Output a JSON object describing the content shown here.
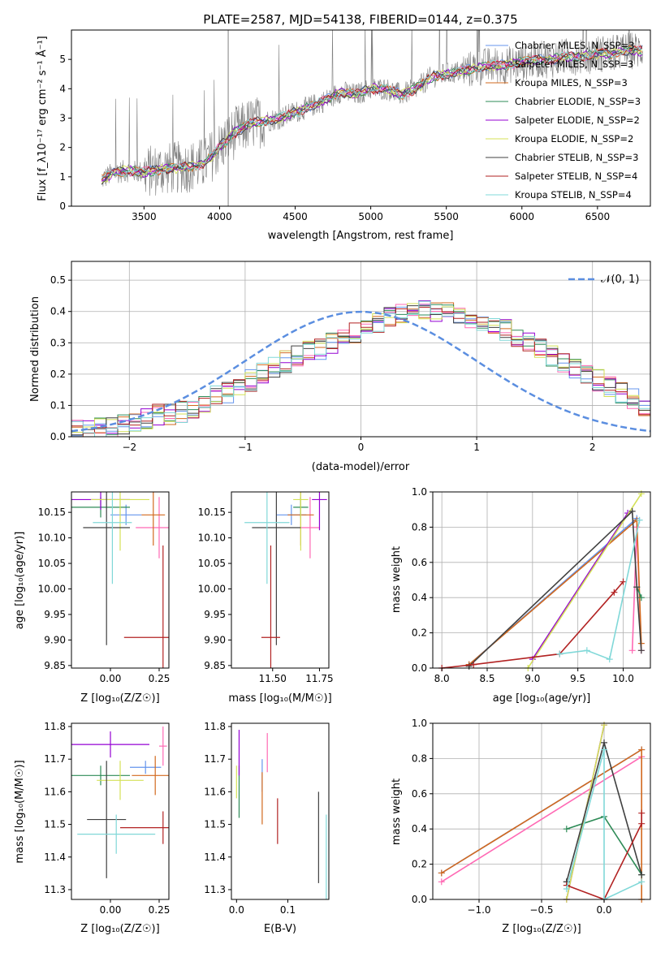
{
  "colors": {
    "chabrier_miles": "#6495ed",
    "salpeter_miles": "#ff69b4",
    "kroupa_miles": "#d2691e",
    "chabrier_elodie": "#2e8b57",
    "salpeter_elodie": "#9400d3",
    "kroupa_elodie": "#d4e157",
    "chabrier_stelib": "#404040",
    "salpeter_stelib": "#b22222",
    "kroupa_stelib": "#80d8d8",
    "normal": "#5b8ee0"
  },
  "spectrum": {
    "title": "PLATE=2587, MJD=54138, FIBERID=0144, z=0.375",
    "xlabel": "wavelength [Angstrom, rest frame]",
    "ylabel": "Flux [f_λ10⁻¹⁷ erg cm⁻² s⁻¹ Å⁻¹]",
    "xticks": [
      "3500",
      "4000",
      "4500",
      "5000",
      "5500",
      "6000",
      "6500"
    ],
    "yticks": [
      "0",
      "1",
      "2",
      "3",
      "4",
      "5"
    ],
    "legend": [
      "Chabrier MILES, N_SSP=3",
      "Salpeter MILES, N_SSP=3",
      "Kroupa MILES, N_SSP=3",
      "Chabrier ELODIE, N_SSP=3",
      "Salpeter ELODIE, N_SSP=2",
      "Kroupa ELODIE, N_SSP=2",
      "Chabrier STELIB, N_SSP=3",
      "Salpeter STELIB, N_SSP=4",
      "Kroupa STELIB, N_SSP=4"
    ]
  },
  "residuals": {
    "xlabel": "(data-model)/error",
    "ylabel": "Normed distribution",
    "xticks": [
      "−2",
      "−1",
      "0",
      "1",
      "2"
    ],
    "yticks": [
      "0.0",
      "0.1",
      "0.2",
      "0.3",
      "0.4",
      "0.5"
    ],
    "legend": "𝒩(0, 1)"
  },
  "panel_age_z": {
    "ylabel": "age  [log₁₀(age/yr)]",
    "xlabel": "Z [log₁₀(Z/Z☉)]",
    "xticks": [
      "0.00",
      "0.25"
    ],
    "yticks": [
      "9.85",
      "9.90",
      "9.95",
      "10.00",
      "10.05",
      "10.10",
      "10.15"
    ]
  },
  "panel_age_mass": {
    "xlabel": "mass [log₁₀(M/M☉)]",
    "xticks": [
      "11.50",
      "11.75"
    ],
    "yticks": [
      "9.85",
      "9.90",
      "9.95",
      "10.00",
      "10.05",
      "10.10",
      "10.15"
    ]
  },
  "panel_weight_age": {
    "ylabel": "mass weight",
    "xlabel": "age  [log₁₀(age/yr)]",
    "xticks": [
      "8.0",
      "8.5",
      "9.0",
      "9.5",
      "10.0"
    ],
    "yticks": [
      "0.0",
      "0.2",
      "0.4",
      "0.6",
      "0.8",
      "1.0"
    ]
  },
  "panel_mass_z": {
    "ylabel": "mass [log₁₀(M/M☉)]",
    "xlabel": "Z [log₁₀(Z/Z☉)]",
    "xticks": [
      "0.00",
      "0.25"
    ],
    "yticks": [
      "11.3",
      "11.4",
      "11.5",
      "11.6",
      "11.7",
      "11.8"
    ]
  },
  "panel_mass_ebv": {
    "xlabel": "E(B-V)",
    "xticks": [
      "0.0",
      "0.1"
    ],
    "yticks": [
      "11.3",
      "11.4",
      "11.5",
      "11.6",
      "11.7",
      "11.8"
    ]
  },
  "panel_weight_z": {
    "ylabel": "mass weight",
    "xlabel": "Z [log₁₀(Z/Z☉)]",
    "xticks": [
      "−1.0",
      "−0.5",
      "0.0"
    ],
    "yticks": [
      "0.0",
      "0.2",
      "0.4",
      "0.6",
      "0.8",
      "1.0"
    ]
  },
  "chart_data": [
    {
      "type": "line",
      "title": "PLATE=2587, MJD=54138, FIBERID=0144, z=0.375",
      "xlabel": "wavelength [Angstrom, rest frame]",
      "ylabel": "Flux [f_λ10⁻¹⁷ erg cm⁻² s⁻¹ Å⁻¹]",
      "xlim": [
        3020,
        6850
      ],
      "ylim": [
        0,
        6
      ],
      "legend_position": "top-right",
      "continuum": {
        "x": [
          3220,
          3300,
          3400,
          3500,
          3600,
          3700,
          3800,
          3900,
          4000,
          4100,
          4200,
          4300,
          4400,
          4500,
          4600,
          4700,
          4800,
          4900,
          5000,
          5100,
          5200,
          5300,
          5400,
          5500,
          5600,
          5700,
          5800,
          5900,
          6000,
          6100,
          6200,
          6300,
          6400,
          6500,
          6600,
          6700,
          6800
        ],
        "y": [
          0.9,
          1.15,
          1.2,
          1.15,
          1.25,
          1.3,
          1.35,
          1.45,
          2.0,
          2.5,
          2.8,
          2.9,
          3.0,
          3.2,
          3.4,
          3.6,
          3.9,
          3.8,
          4.0,
          4.0,
          3.8,
          4.0,
          4.4,
          4.5,
          4.6,
          4.7,
          4.8,
          4.8,
          4.9,
          5.0,
          5.0,
          5.1,
          5.1,
          5.2,
          5.2,
          5.3,
          5.3
        ]
      },
      "series": [
        {
          "name": "Chabrier MILES, N_SSP=3"
        },
        {
          "name": "Salpeter MILES, N_SSP=3"
        },
        {
          "name": "Kroupa MILES, N_SSP=3"
        },
        {
          "name": "Chabrier ELODIE, N_SSP=3"
        },
        {
          "name": "Salpeter ELODIE, N_SSP=2"
        },
        {
          "name": "Kroupa ELODIE, N_SSP=2"
        },
        {
          "name": "Chabrier STELIB, N_SSP=3"
        },
        {
          "name": "Salpeter STELIB, N_SSP=4"
        },
        {
          "name": "Kroupa STELIB, N_SSP=4"
        }
      ]
    },
    {
      "type": "area",
      "xlabel": "(data-model)/error",
      "ylabel": "Normed distribution",
      "xlim": [
        -2.5,
        2.5
      ],
      "ylim": [
        0,
        0.56
      ],
      "bin_width": 0.1,
      "bins_start": -2.5,
      "histogram": [
        0.02,
        0.02,
        0.03,
        0.03,
        0.04,
        0.05,
        0.06,
        0.07,
        0.07,
        0.08,
        0.09,
        0.11,
        0.13,
        0.14,
        0.16,
        0.18,
        0.2,
        0.22,
        0.24,
        0.26,
        0.27,
        0.28,
        0.3,
        0.31,
        0.33,
        0.35,
        0.36,
        0.38,
        0.39,
        0.4,
        0.4,
        0.4,
        0.4,
        0.39,
        0.38,
        0.37,
        0.36,
        0.34,
        0.32,
        0.3,
        0.28,
        0.26,
        0.24,
        0.22,
        0.2,
        0.18,
        0.16,
        0.14,
        0.12,
        0.1
      ],
      "curve": "N(0,1)",
      "legend_position": "top-right",
      "grid": true
    },
    {
      "type": "scatter",
      "xlabel": "Z [log₁₀(Z/Z☉)]",
      "ylabel": "age  [log₁₀(age/yr)]",
      "xlim": [
        -0.2,
        0.3
      ],
      "ylim": [
        9.845,
        10.19
      ],
      "points": [
        {
          "x": 0.08,
          "y": 10.145,
          "xerr": 0.08,
          "yerr": 0.02
        },
        {
          "x": 0.25,
          "y": 10.12,
          "xerr": 0.12,
          "yerr": 0.06
        },
        {
          "x": 0.22,
          "y": 10.145,
          "xerr": 0.06,
          "yerr": 0.06
        },
        {
          "x": -0.05,
          "y": 10.16,
          "xerr": 0.15,
          "yerr": 0.02
        },
        {
          "x": -0.05,
          "y": 10.175,
          "xerr": 0.15,
          "yerr": 0.02
        },
        {
          "x": 0.05,
          "y": 10.175,
          "xerr": 0.15,
          "yerr": 0.1
        },
        {
          "x": -0.02,
          "y": 10.12,
          "xerr": 0.12,
          "yerr": 0.23
        },
        {
          "x": 0.27,
          "y": 9.905,
          "xerr": 0.2,
          "yerr": 0.18
        },
        {
          "x": 0.01,
          "y": 10.13,
          "xerr": 0.1,
          "yerr": 0.12
        }
      ]
    },
    {
      "type": "scatter",
      "xlabel": "mass [log₁₀(M/M☉)]",
      "xlim": [
        11.28,
        11.8
      ],
      "ylim": [
        9.845,
        10.19
      ],
      "points": [
        {
          "x": 11.6,
          "y": 10.145,
          "xerr": 0.08,
          "yerr": 0.02
        },
        {
          "x": 11.7,
          "y": 10.12,
          "xerr": 0.05,
          "yerr": 0.06
        },
        {
          "x": 11.65,
          "y": 10.145,
          "xerr": 0.07,
          "yerr": 0.06
        },
        {
          "x": 11.65,
          "y": 10.16,
          "xerr": 0.04,
          "yerr": 0.02
        },
        {
          "x": 11.75,
          "y": 10.175,
          "xerr": 0.04,
          "yerr": 0.06
        },
        {
          "x": 11.65,
          "y": 10.175,
          "xerr": 0.04,
          "yerr": 0.1
        },
        {
          "x": 11.52,
          "y": 10.12,
          "xerr": 0.13,
          "yerr": 0.23
        },
        {
          "x": 11.49,
          "y": 9.905,
          "xerr": 0.05,
          "yerr": 0.18
        },
        {
          "x": 11.47,
          "y": 10.13,
          "xerr": 0.12,
          "yerr": 0.12
        }
      ]
    },
    {
      "type": "line",
      "xlabel": "age  [log₁₀(age/yr)]",
      "ylabel": "mass weight",
      "xlim": [
        7.9,
        10.3
      ],
      "ylim": [
        0,
        1
      ],
      "series": [
        {
          "name": "Chabrier MILES",
          "x": [
            8.3,
            10.15
          ],
          "y": [
            0.02,
            0.85
          ]
        },
        {
          "name": "Salpeter MILES",
          "x": [
            10.1,
            10.15,
            10.2
          ],
          "y": [
            0.1,
            0.8,
            0.1
          ]
        },
        {
          "name": "Kroupa MILES",
          "x": [
            8.3,
            10.15,
            10.2
          ],
          "y": [
            0.02,
            0.84,
            0.14
          ]
        },
        {
          "name": "Chabrier ELODIE",
          "x": [
            10.15,
            10.2
          ],
          "y": [
            0.46,
            0.4
          ]
        },
        {
          "name": "Salpeter ELODIE",
          "x": [
            9.0,
            10.05
          ],
          "y": [
            0.05,
            0.88
          ]
        },
        {
          "name": "Kroupa ELODIE",
          "x": [
            8.95,
            10.2
          ],
          "y": [
            0.0,
            0.99
          ]
        },
        {
          "name": "Chabrier STELIB",
          "x": [
            8.3,
            10.1,
            10.15,
            10.2
          ],
          "y": [
            0.01,
            0.89,
            0.46,
            0.1
          ]
        },
        {
          "name": "Salpeter STELIB",
          "x": [
            8.0,
            8.35,
            9.3,
            9.9,
            10.0
          ],
          "y": [
            0.0,
            0.02,
            0.08,
            0.43,
            0.49
          ]
        },
        {
          "name": "Kroupa STELIB",
          "x": [
            9.3,
            9.6,
            9.85,
            10.18
          ],
          "y": [
            0.08,
            0.1,
            0.05,
            0.84
          ]
        }
      ]
    },
    {
      "type": "scatter",
      "xlabel": "Z [log₁₀(Z/Z☉)]",
      "ylabel": "mass [log₁₀(M/M☉)]",
      "xlim": [
        -0.2,
        0.3
      ],
      "ylim": [
        11.27,
        11.81
      ],
      "points": [
        {
          "x": 0.18,
          "y": 11.675,
          "xerr": 0.08,
          "yerr": 0.02
        },
        {
          "x": 0.27,
          "y": 11.74,
          "xerr": 0.02,
          "yerr": 0.06
        },
        {
          "x": 0.23,
          "y": 11.65,
          "xerr": 0.12,
          "yerr": 0.06
        },
        {
          "x": -0.05,
          "y": 11.65,
          "xerr": 0.15,
          "yerr": 0.03
        },
        {
          "x": 0.0,
          "y": 11.745,
          "xerr": 0.2,
          "yerr": 0.04
        },
        {
          "x": 0.05,
          "y": 11.635,
          "xerr": 0.12,
          "yerr": 0.06
        },
        {
          "x": -0.02,
          "y": 11.515,
          "xerr": 0.1,
          "yerr": 0.18
        },
        {
          "x": 0.27,
          "y": 11.49,
          "xerr": 0.22,
          "yerr": 0.05
        },
        {
          "x": 0.03,
          "y": 11.47,
          "xerr": 0.2,
          "yerr": 0.06
        }
      ]
    },
    {
      "type": "scatter",
      "xlabel": "E(B-V)",
      "xlim": [
        -0.01,
        0.18
      ],
      "ylim": [
        11.27,
        11.81
      ],
      "points": [
        {
          "x": 0.05,
          "y": 11.65,
          "yerr": 0.05
        },
        {
          "x": 0.06,
          "y": 11.72,
          "yerr": 0.06
        },
        {
          "x": 0.05,
          "y": 11.58,
          "yerr": 0.08
        },
        {
          "x": 0.005,
          "y": 11.6,
          "yerr": 0.08
        },
        {
          "x": 0.005,
          "y": 11.72,
          "yerr": 0.07
        },
        {
          "x": 0.0,
          "y": 11.63,
          "yerr": 0.05
        },
        {
          "x": 0.16,
          "y": 11.46,
          "yerr": 0.14
        },
        {
          "x": 0.08,
          "y": 11.51,
          "yerr": 0.07
        },
        {
          "x": 0.175,
          "y": 11.4,
          "yerr": 0.13
        }
      ]
    },
    {
      "type": "line",
      "xlabel": "Z [log₁₀(Z/Z☉)]",
      "ylabel": "mass weight",
      "xlim": [
        -1.37,
        0.37
      ],
      "ylim": [
        0,
        1
      ],
      "series": [
        {
          "name": "Chabrier MILES",
          "x": [
            -1.3,
            0.3
          ],
          "y": [
            0.15,
            0.85
          ]
        },
        {
          "name": "Salpeter MILES",
          "x": [
            -1.3,
            0.3
          ],
          "y": [
            0.1,
            0.81
          ]
        },
        {
          "name": "Kroupa MILES",
          "x": [
            -1.3,
            0.3,
            0.3
          ],
          "y": [
            0.15,
            0.85,
            0.0
          ]
        },
        {
          "name": "Chabrier ELODIE",
          "x": [
            -0.3,
            0.0,
            0.3
          ],
          "y": [
            0.4,
            0.47,
            0.14
          ]
        },
        {
          "name": "Salpeter ELODIE",
          "x": [
            -0.3,
            0.0
          ],
          "y": [
            0.0,
            0.99
          ]
        },
        {
          "name": "Kroupa ELODIE",
          "x": [
            -0.3,
            0.0
          ],
          "y": [
            0.0,
            0.99
          ]
        },
        {
          "name": "Chabrier STELIB",
          "x": [
            -0.3,
            -0.3,
            0.0,
            0.3
          ],
          "y": [
            0.1,
            0.1,
            0.89,
            0.14
          ]
        },
        {
          "name": "Salpeter STELIB",
          "x": [
            -0.3,
            0.0,
            0.3,
            0.3
          ],
          "y": [
            0.08,
            0.0,
            0.43,
            0.49
          ]
        },
        {
          "name": "Kroupa STELIB",
          "x": [
            -0.3,
            0.0,
            0.0,
            0.3
          ],
          "y": [
            0.06,
            0.85,
            0.0,
            0.1
          ]
        }
      ]
    }
  ]
}
